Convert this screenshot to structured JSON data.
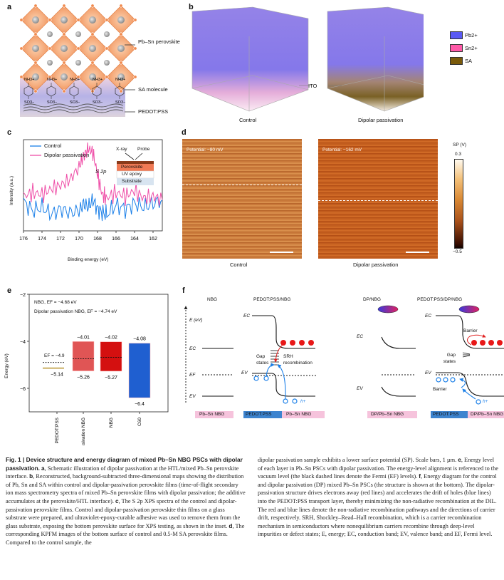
{
  "panels": {
    "a": {
      "label": "a",
      "layer_labels": [
        "Pb–Sn perovskite",
        "SA molecule",
        "PEDOT:PSS"
      ],
      "top_group": "NH3+",
      "bottom_group": "SO3−"
    },
    "b": {
      "label": "b",
      "sample_labels": [
        "Control",
        "Dipolar passivation"
      ],
      "substrate_label": "ITO",
      "legend": [
        {
          "label": "Pb2+",
          "color": "#5a5af5"
        },
        {
          "label": "Sn2+",
          "color": "#ff5aa8"
        },
        {
          "label": "SA",
          "color": "#7a5a0a"
        }
      ]
    },
    "c": {
      "label": "c",
      "peak_label": "S 2p",
      "inset": {
        "xray": "X-ray",
        "probe": "Probe",
        "layers": [
          "Perovskite",
          "UV epoxy",
          "Substrate"
        ]
      }
    },
    "d": {
      "label": "d",
      "maps": [
        {
          "title": "Control",
          "potential": "Potential: −80 mV"
        },
        {
          "title": "Dipolar passivation",
          "potential": "Potential: −162 mV"
        }
      ],
      "colorbar": {
        "title": "SP (V)",
        "max": "0.3",
        "min": "−0.5"
      }
    },
    "e": {
      "label": "e",
      "notes": [
        "NBG, EF = −4.68 eV",
        "Dipolar passivation NBG, EF = −4.74 eV"
      ]
    },
    "f": {
      "label": "f",
      "diagrams": [
        {
          "title": "NBG",
          "base": "Pb–Sn NBG"
        },
        {
          "title": "PEDOT:PSS/NBG",
          "base_left": "PEDOT:PSS",
          "base_right": "Pb–Sn NBG",
          "gap": "Gap states",
          "srh": "SRH recombination"
        },
        {
          "title": "DP/NBG",
          "base": "DP/Pb–Sn NBG"
        },
        {
          "title": "PEDOT:PSS/DP/NBG",
          "base_left": "PEDOT:PSS",
          "base_right": "DP/Pb–Sn NBG",
          "gap": "Gap states",
          "barrier": "Barrier"
        }
      ],
      "axis_label": "E (eV)",
      "levels": [
        "EC",
        "EF",
        "EV"
      ],
      "hole": "h+"
    }
  },
  "chart_data": [
    {
      "type": "line",
      "title": "S 2p XPS spectra",
      "xlabel": "Binding energy (eV)",
      "ylabel": "Intensity (a.u.)",
      "xlim": [
        176,
        161
      ],
      "xticks": [
        176,
        174,
        172,
        170,
        168,
        166,
        164,
        162
      ],
      "legend_position": "top-left",
      "x": [
        176,
        175,
        174,
        173,
        172,
        171,
        170,
        169.5,
        169,
        168.5,
        168,
        167.5,
        167,
        166,
        165,
        164,
        163,
        162,
        161
      ],
      "series": [
        {
          "name": "Control",
          "color": "#1a7fe8",
          "values": [
            0.32,
            0.22,
            0.26,
            0.18,
            0.24,
            0.2,
            0.22,
            0.3,
            0.26,
            0.34,
            0.24,
            0.2,
            0.18,
            0.28,
            0.24,
            0.3,
            0.26,
            0.3,
            0.34
          ]
        },
        {
          "name": "Dipolar passivation",
          "color": "#ef4fa8",
          "values": [
            0.38,
            0.42,
            0.4,
            0.46,
            0.5,
            0.56,
            0.7,
            0.82,
            0.9,
            0.86,
            0.62,
            0.4,
            0.36,
            0.42,
            0.38,
            0.44,
            0.36,
            0.38,
            0.34
          ]
        }
      ]
    },
    {
      "type": "bar",
      "title": "Energy level of each layer",
      "ylabel": "Energy (eV)",
      "ylim": [
        -7,
        -2
      ],
      "yticks": [
        -2,
        -4,
        -6
      ],
      "categories": [
        "PEDOT:PSS",
        "Dipolar passivation NBG",
        "NBG",
        "C60"
      ],
      "series": [
        {
          "name": "top",
          "values": [
            null,
            -4.01,
            -4.02,
            -4.08
          ]
        },
        {
          "name": "bottom",
          "values": [
            -5.14,
            -5.26,
            -5.27,
            -6.4
          ]
        }
      ],
      "fermi_levels": {
        "PEDOT:PSS": -4.9,
        "Dipolar passivation NBG": -4.74,
        "NBG": -4.68
      },
      "fermi_label": "EF = −4.9",
      "colors": [
        "#b8932e",
        "#e05555",
        "#d41010",
        "#1f5fd0"
      ],
      "data_labels": {
        "top": [
          "",
          "−4.01",
          "−4.02",
          "−4.08"
        ],
        "bottom": [
          "−5.14",
          "−5.26",
          "−5.27",
          "−6.4"
        ]
      }
    }
  ],
  "caption": {
    "heading": "Fig. 1 | Device structure and energy diagram of mixed Pb–Sn NBG PSCs with dipolar passivation.",
    "parts": [
      {
        "tag": "a",
        "text": ", Schematic illustration of dipolar passivation at the HTL/mixed Pb–Sn perovskite interface. "
      },
      {
        "tag": "b",
        "text": ", Reconstructed, background-subtracted three-dimensional maps showing the distribution of Pb, Sn and SA within control and dipolar-passivation perovskite films (time-of-flight secondary ion mass spectrometry spectra of mixed Pb–Sn perovskite films with dipolar passivation; the additive accumulates at the perovskite/HTL interface). "
      },
      {
        "tag": "c",
        "text": ", The S 2p XPS spectra of the control and dipolar-passivation perovskite films. Control and dipolar-passivation perovskite thin films on a glass substrate were prepared, and ultraviolet-epoxy-curable adhesive was used to remove them from the glass substrate, exposing the bottom perovskite surface for XPS testing, as shown in the inset. "
      },
      {
        "tag": "d",
        "text": ", The corresponding KPFM images of the bottom surface of control and 0.5-M SA perovskite films. Compared to the control sample, the dipolar passivation sample exhibits a lower surface potential (SP). Scale bars, 1 µm. "
      },
      {
        "tag": "e",
        "text": ", Energy level of each layer in Pb–Sn PSCs with dipolar passivation. The energy-level alignment is referenced to the vacuum level (the black dashed lines denote the Fermi (EF) levels). "
      },
      {
        "tag": "f",
        "text": ", Energy diagram for the control and dipolar passivation (DP) mixed Pb–Sn PSCs (the structure is shown at the bottom). The dipolar-passivation structure drives electrons away (red lines) and accelerates the drift of holes (blue lines) into the PEDOT:PSS transport layer, thereby minimizing the non-radiative recombination at the DIL. The red and blue lines denote the non-radiative recombination pathways and the directions of carrier drift, respectively. SRH, Shockley–Read–Hall recombination, which is a carrier recombination mechanism in semiconductors where nonequilibrium carriers recombine through deep-level impurities or defect states; E, energy; EC, conduction band; EV, valence band; and EF, Fermi level."
      }
    ]
  }
}
